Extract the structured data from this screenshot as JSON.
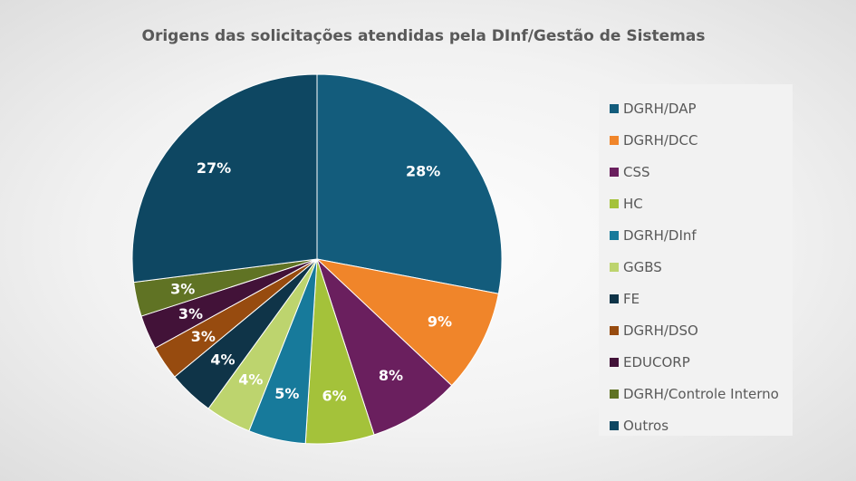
{
  "chart_data": {
    "type": "pie",
    "title": "Origens das solicitações atendidas pela DInf/Gestão de Sistemas",
    "legend_position": "right",
    "slices": [
      {
        "name": "DGRH/DAP",
        "value": 28,
        "label": "28%",
        "color": "#135c7c"
      },
      {
        "name": "DGRH/DCC",
        "value": 9,
        "label": "9%",
        "color": "#f0852a"
      },
      {
        "name": "CSS",
        "value": 8,
        "label": "8%",
        "color": "#6a1f5e"
      },
      {
        "name": "HC",
        "value": 6,
        "label": "6%",
        "color": "#a4c23a"
      },
      {
        "name": "DGRH/DInf",
        "value": 5,
        "label": "5%",
        "color": "#177a9b"
      },
      {
        "name": "GGBS",
        "value": 4,
        "label": "4%",
        "color": "#bdd46e"
      },
      {
        "name": "FE",
        "value": 4,
        "label": "4%",
        "color": "#0f3448"
      },
      {
        "name": "DGRH/DSO",
        "value": 3,
        "label": "3%",
        "color": "#974b0f"
      },
      {
        "name": "EDUCORP",
        "value": 3,
        "label": "3%",
        "color": "#421238"
      },
      {
        "name": "DGRH/Controle Interno",
        "value": 3,
        "label": "3%",
        "color": "#607324"
      },
      {
        "name": "Outros",
        "value": 27,
        "label": "27%",
        "color": "#0e4762"
      }
    ]
  }
}
